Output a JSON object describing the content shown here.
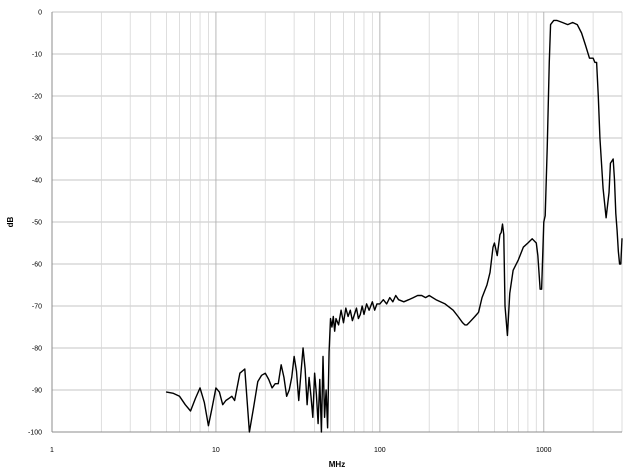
{
  "chart_data": {
    "type": "line",
    "title": "",
    "xlabel": "MHz",
    "ylabel": "dB",
    "xscale": "log",
    "xlim": [
      1,
      3000
    ],
    "ylim": [
      -100,
      0
    ],
    "grid": true,
    "legend": "none",
    "x_tick_labels": [
      "1",
      "10",
      "100",
      "1000"
    ],
    "x_tick_values": [
      1,
      10,
      100,
      1000
    ],
    "y_tick_labels": [
      "0",
      "-10",
      "-20",
      "-30",
      "-40",
      "-50",
      "-60",
      "-70",
      "-80",
      "-90",
      "-100"
    ],
    "y_tick_values": [
      0,
      -10,
      -20,
      -30,
      -40,
      -50,
      -60,
      -70,
      -80,
      -90,
      -100
    ],
    "colors": {
      "line": "#000000",
      "major_grid": "#b0b0b0",
      "minor_grid": "#d6d6d6",
      "background": "#ffffff"
    },
    "series": [
      {
        "x": [
          5,
          5.5,
          6,
          6.5,
          7,
          7.5,
          8,
          8.5,
          9,
          9.5,
          10,
          10.5,
          11,
          11.5,
          12,
          12.5,
          13,
          14,
          15,
          16,
          17,
          18,
          19,
          20,
          21,
          22,
          23,
          24,
          25,
          26,
          27,
          28,
          29,
          30,
          31,
          32,
          33,
          34,
          35,
          36,
          37,
          38,
          39,
          40,
          41,
          42,
          43,
          44,
          45,
          46,
          47,
          48,
          49,
          50,
          51,
          52,
          53,
          54,
          56,
          58,
          60,
          62,
          64,
          66,
          68,
          70,
          72,
          74,
          76,
          78,
          80,
          83,
          86,
          90,
          93,
          96,
          100,
          105,
          110,
          115,
          120,
          125,
          130,
          140,
          150,
          160,
          170,
          180,
          190,
          200,
          220,
          250,
          280,
          300,
          320,
          330,
          340,
          350,
          380,
          400,
          420,
          450,
          470,
          490,
          500,
          520,
          540,
          550,
          560,
          570,
          580,
          600,
          620,
          650,
          700,
          750,
          800,
          850,
          900,
          920,
          950,
          970,
          1000,
          1020,
          1050,
          1080,
          1100,
          1150,
          1200,
          1300,
          1400,
          1500,
          1600,
          1700,
          1800,
          1900,
          2000,
          2050,
          2100,
          2150,
          2200,
          2300,
          2400,
          2500,
          2550,
          2600,
          2650,
          2700,
          2750,
          2800,
          2850,
          2900,
          2950,
          3000
        ],
        "y": [
          -90.5,
          -90.8,
          -91.5,
          -93.5,
          -95,
          -92,
          -89.5,
          -93,
          -98.5,
          -94,
          -89.5,
          -90.5,
          -93.5,
          -92.5,
          -92.0,
          -91.5,
          -92.5,
          -86,
          -85,
          -100,
          -94,
          -88,
          -86.5,
          -86,
          -87.5,
          -89.5,
          -88.5,
          -88.5,
          -84,
          -87,
          -91.5,
          -90,
          -87,
          -82,
          -85.5,
          -92.5,
          -86,
          -80,
          -85,
          -93.5,
          -87,
          -91.5,
          -96.5,
          -86,
          -91,
          -98,
          -87.5,
          -100,
          -82,
          -96.5,
          -90,
          -99,
          -81,
          -73,
          -75,
          -72.5,
          -76,
          -73,
          -74.5,
          -71,
          -74,
          -70.5,
          -72.5,
          -71,
          -73.5,
          -72,
          -70.5,
          -73,
          -72,
          -70,
          -72,
          -69.5,
          -71,
          -69,
          -71,
          -69.5,
          -69.5,
          -68.5,
          -69.5,
          -68,
          -69,
          -67.5,
          -68.5,
          -69,
          -68.5,
          -68,
          -67.5,
          -67.5,
          -68,
          -67.5,
          -68.5,
          -69.5,
          -71,
          -72.5,
          -74,
          -74.5,
          -74.5,
          -74,
          -72.5,
          -71.5,
          -68,
          -65,
          -62,
          -56,
          -55,
          -58,
          -53,
          -52.5,
          -50.5,
          -53,
          -70,
          -77,
          -67,
          -61.5,
          -59,
          -56,
          -55,
          -54,
          -55,
          -58,
          -66,
          -66,
          -50,
          -48.5,
          -32,
          -12,
          -3,
          -2,
          -2,
          -2.5,
          -3,
          -2.5,
          -3,
          -5,
          -8,
          -11,
          -11,
          -12,
          -12,
          -20,
          -30,
          -42,
          -49,
          -43,
          -36,
          -35.5,
          -35,
          -40,
          -48,
          -52,
          -57,
          -60,
          -60,
          -54
        ]
      }
    ]
  }
}
